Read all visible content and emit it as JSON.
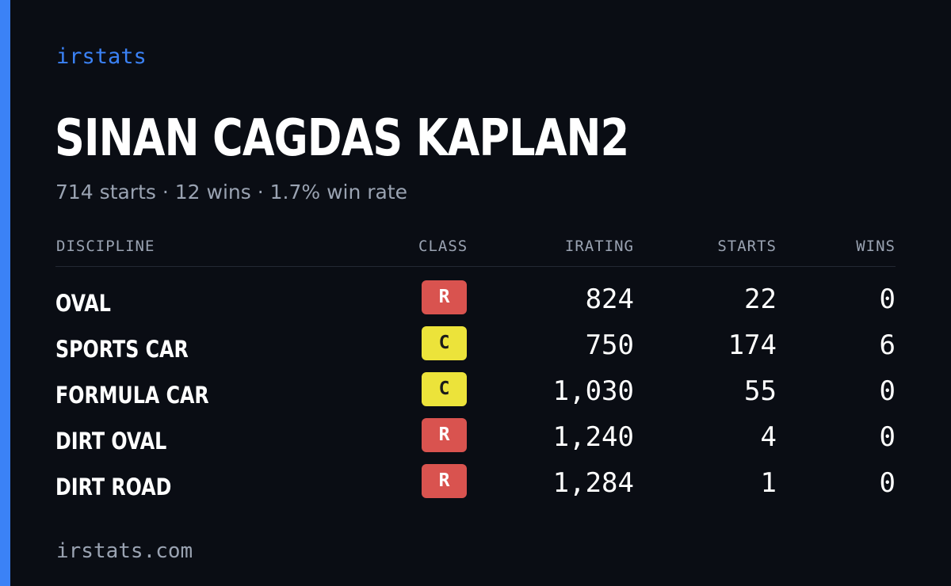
{
  "brand": "irstats",
  "driver": {
    "name": "SINAN CAGDAS KAPLAN2",
    "summary": "714 starts · 12 wins · 1.7% win rate"
  },
  "table": {
    "headers": {
      "discipline": "DISCIPLINE",
      "class": "CLASS",
      "irating": "IRATING",
      "starts": "STARTS",
      "wins": "WINS"
    },
    "rows": [
      {
        "discipline": "OVAL",
        "class": "R",
        "class_bg": "#d9534f",
        "class_fg": "#ffffff",
        "irating": "824",
        "starts": "22",
        "wins": "0"
      },
      {
        "discipline": "SPORTS CAR",
        "class": "C",
        "class_bg": "#ece33a",
        "class_fg": "#1a1a1a",
        "irating": "750",
        "starts": "174",
        "wins": "6"
      },
      {
        "discipline": "FORMULA CAR",
        "class": "C",
        "class_bg": "#ece33a",
        "class_fg": "#1a1a1a",
        "irating": "1,030",
        "starts": "55",
        "wins": "0"
      },
      {
        "discipline": "DIRT OVAL",
        "class": "R",
        "class_bg": "#d9534f",
        "class_fg": "#ffffff",
        "irating": "1,240",
        "starts": "4",
        "wins": "0"
      },
      {
        "discipline": "DIRT ROAD",
        "class": "R",
        "class_bg": "#d9534f",
        "class_fg": "#ffffff",
        "irating": "1,284",
        "starts": "1",
        "wins": "0"
      }
    ]
  },
  "footer": "irstats.com",
  "colors": {
    "accent": "#3b82f6",
    "background": "#0a0d14",
    "muted": "#9aa3b2"
  }
}
